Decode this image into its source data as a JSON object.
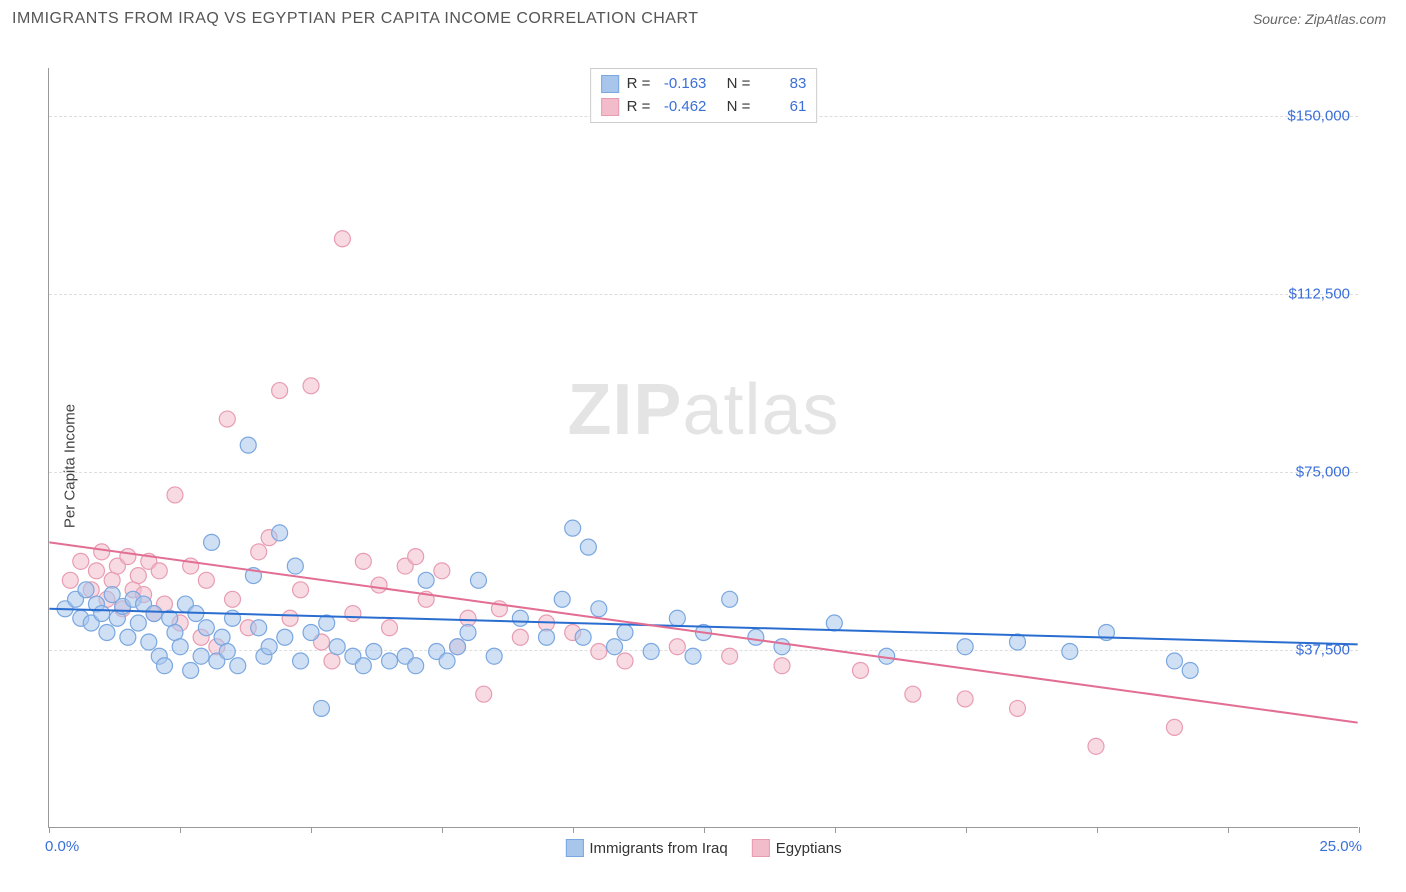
{
  "header": {
    "title": "IMMIGRANTS FROM IRAQ VS EGYPTIAN PER CAPITA INCOME CORRELATION CHART",
    "source": "Source: ZipAtlas.com"
  },
  "chart": {
    "type": "scatter",
    "ylabel": "Per Capita Income",
    "xlim": [
      0,
      25
    ],
    "ylim": [
      0,
      160000
    ],
    "ytick_values": [
      37500,
      75000,
      112500,
      150000
    ],
    "ytick_labels": [
      "$37,500",
      "$75,000",
      "$112,500",
      "$150,000"
    ],
    "xtick_values": [
      0,
      2.5,
      5,
      7.5,
      10,
      12.5,
      15,
      17.5,
      20,
      22.5,
      25
    ],
    "xtick_label_left": "0.0%",
    "xtick_label_right": "25.0%",
    "background_color": "#ffffff",
    "grid_color": "#dddddd",
    "axis_color": "#999999",
    "tick_label_color": "#3a6fd8",
    "marker_radius": 8,
    "marker_opacity": 0.55,
    "line_width": 2,
    "watermark_text_1": "ZIP",
    "watermark_text_2": "atlas"
  },
  "series": [
    {
      "name": "Immigrants from Iraq",
      "color": "#7aa7e0",
      "fill": "#a8c6ec",
      "line_color": "#2a6dd0",
      "R_label": "R =",
      "R": "-0.163",
      "N_label": "N =",
      "N": "83",
      "trend": {
        "x1": 0,
        "y1": 46000,
        "x2": 25,
        "y2": 38500
      },
      "points": [
        [
          0.3,
          46000
        ],
        [
          0.5,
          48000
        ],
        [
          0.6,
          44000
        ],
        [
          0.7,
          50000
        ],
        [
          0.8,
          43000
        ],
        [
          0.9,
          47000
        ],
        [
          1.0,
          45000
        ],
        [
          1.1,
          41000
        ],
        [
          1.2,
          49000
        ],
        [
          1.3,
          44000
        ],
        [
          1.4,
          46500
        ],
        [
          1.5,
          40000
        ],
        [
          1.6,
          48000
        ],
        [
          1.7,
          43000
        ],
        [
          1.8,
          47000
        ],
        [
          1.9,
          39000
        ],
        [
          2.0,
          45000
        ],
        [
          2.1,
          36000
        ],
        [
          2.2,
          34000
        ],
        [
          2.3,
          44000
        ],
        [
          2.4,
          41000
        ],
        [
          2.5,
          38000
        ],
        [
          2.6,
          47000
        ],
        [
          2.7,
          33000
        ],
        [
          2.8,
          45000
        ],
        [
          2.9,
          36000
        ],
        [
          3.0,
          42000
        ],
        [
          3.1,
          60000
        ],
        [
          3.2,
          35000
        ],
        [
          3.3,
          40000
        ],
        [
          3.4,
          37000
        ],
        [
          3.5,
          44000
        ],
        [
          3.6,
          34000
        ],
        [
          3.8,
          80500
        ],
        [
          3.9,
          53000
        ],
        [
          4.0,
          42000
        ],
        [
          4.1,
          36000
        ],
        [
          4.2,
          38000
        ],
        [
          4.4,
          62000
        ],
        [
          4.5,
          40000
        ],
        [
          4.7,
          55000
        ],
        [
          4.8,
          35000
        ],
        [
          5.0,
          41000
        ],
        [
          5.2,
          25000
        ],
        [
          5.3,
          43000
        ],
        [
          5.5,
          38000
        ],
        [
          5.8,
          36000
        ],
        [
          6.0,
          34000
        ],
        [
          6.2,
          37000
        ],
        [
          6.5,
          35000
        ],
        [
          6.8,
          36000
        ],
        [
          7.0,
          34000
        ],
        [
          7.2,
          52000
        ],
        [
          7.4,
          37000
        ],
        [
          7.6,
          35000
        ],
        [
          7.8,
          38000
        ],
        [
          8.0,
          41000
        ],
        [
          8.2,
          52000
        ],
        [
          8.5,
          36000
        ],
        [
          9.0,
          44000
        ],
        [
          9.5,
          40000
        ],
        [
          9.8,
          48000
        ],
        [
          10.0,
          63000
        ],
        [
          10.2,
          40000
        ],
        [
          10.3,
          59000
        ],
        [
          10.5,
          46000
        ],
        [
          10.8,
          38000
        ],
        [
          11.0,
          41000
        ],
        [
          11.5,
          37000
        ],
        [
          12.0,
          44000
        ],
        [
          12.3,
          36000
        ],
        [
          12.5,
          41000
        ],
        [
          13.0,
          48000
        ],
        [
          13.5,
          40000
        ],
        [
          14.0,
          38000
        ],
        [
          15.0,
          43000
        ],
        [
          16.0,
          36000
        ],
        [
          17.5,
          38000
        ],
        [
          18.5,
          39000
        ],
        [
          19.5,
          37000
        ],
        [
          21.5,
          35000
        ],
        [
          21.8,
          33000
        ],
        [
          20.2,
          41000
        ]
      ]
    },
    {
      "name": "Egyptians",
      "color": "#e89cb2",
      "fill": "#f2bccb",
      "line_color": "#e26f93",
      "R_label": "R =",
      "R": "-0.462",
      "N_label": "N =",
      "N": "61",
      "trend": {
        "x1": 0,
        "y1": 60000,
        "x2": 25,
        "y2": 22000
      },
      "points": [
        [
          0.4,
          52000
        ],
        [
          0.6,
          56000
        ],
        [
          0.8,
          50000
        ],
        [
          0.9,
          54000
        ],
        [
          1.0,
          58000
        ],
        [
          1.1,
          48000
        ],
        [
          1.2,
          52000
        ],
        [
          1.3,
          55000
        ],
        [
          1.4,
          46000
        ],
        [
          1.5,
          57000
        ],
        [
          1.6,
          50000
        ],
        [
          1.7,
          53000
        ],
        [
          1.8,
          49000
        ],
        [
          1.9,
          56000
        ],
        [
          2.0,
          45000
        ],
        [
          2.1,
          54000
        ],
        [
          2.2,
          47000
        ],
        [
          2.4,
          70000
        ],
        [
          2.5,
          43000
        ],
        [
          2.7,
          55000
        ],
        [
          2.9,
          40000
        ],
        [
          3.0,
          52000
        ],
        [
          3.2,
          38000
        ],
        [
          3.4,
          86000
        ],
        [
          3.5,
          48000
        ],
        [
          3.8,
          42000
        ],
        [
          4.0,
          58000
        ],
        [
          4.2,
          61000
        ],
        [
          4.4,
          92000
        ],
        [
          4.6,
          44000
        ],
        [
          4.8,
          50000
        ],
        [
          5.0,
          93000
        ],
        [
          5.2,
          39000
        ],
        [
          5.4,
          35000
        ],
        [
          5.6,
          124000
        ],
        [
          5.8,
          45000
        ],
        [
          6.0,
          56000
        ],
        [
          6.3,
          51000
        ],
        [
          6.5,
          42000
        ],
        [
          6.8,
          55000
        ],
        [
          7.0,
          57000
        ],
        [
          7.2,
          48000
        ],
        [
          7.5,
          54000
        ],
        [
          7.8,
          38000
        ],
        [
          8.0,
          44000
        ],
        [
          8.3,
          28000
        ],
        [
          8.6,
          46000
        ],
        [
          9.0,
          40000
        ],
        [
          9.5,
          43000
        ],
        [
          10.0,
          41000
        ],
        [
          10.5,
          37000
        ],
        [
          11.0,
          35000
        ],
        [
          12.0,
          38000
        ],
        [
          13.0,
          36000
        ],
        [
          14.0,
          34000
        ],
        [
          15.5,
          33000
        ],
        [
          16.5,
          28000
        ],
        [
          17.5,
          27000
        ],
        [
          18.5,
          25000
        ],
        [
          20.0,
          17000
        ],
        [
          21.5,
          21000
        ]
      ]
    }
  ],
  "legend": {
    "series1": "Immigrants from Iraq",
    "series2": "Egyptians"
  }
}
